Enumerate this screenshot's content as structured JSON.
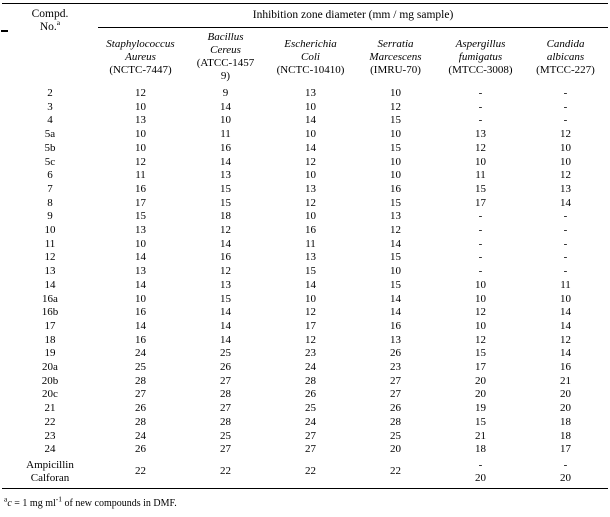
{
  "colors": {
    "text": "#000000",
    "background": "#ffffff",
    "rule": "#000000"
  },
  "page": {
    "footnote": {
      "sup": "a",
      "var": "c",
      "mid": " = 1 mg ml",
      "exp": "-1",
      "tail": " of new compounds in DMF."
    }
  },
  "table": {
    "compound_header": {
      "line1": "Compd.",
      "line2": "No.",
      "sup": "a"
    },
    "span_header": "Inhibition zone diameter (mm / mg sample)",
    "organisms": [
      {
        "name_lines": [
          "Staphylococcus",
          "Aureus"
        ],
        "code_lines": [
          "(NCTC-7447)"
        ]
      },
      {
        "name_lines": [
          "Bacillus",
          "Cereus"
        ],
        "code_lines": [
          "(ATCC-1457",
          "9)"
        ]
      },
      {
        "name_lines": [
          "Escherichia",
          "Coli"
        ],
        "code_lines": [
          "(NCTC-10410)"
        ]
      },
      {
        "name_lines": [
          "Serratia",
          "Marcescens"
        ],
        "code_lines": [
          "(IMRU-70)"
        ]
      },
      {
        "name_lines": [
          "Aspergillus",
          "fumigatus"
        ],
        "code_lines": [
          "(MTCC-3008)"
        ]
      },
      {
        "name_lines": [
          "Candida",
          "albicans"
        ],
        "code_lines": [
          "(MTCC-227)"
        ]
      }
    ],
    "rows": [
      {
        "compound": "2",
        "values": [
          "12",
          "9",
          "13",
          "10",
          "-",
          "-"
        ]
      },
      {
        "compound": "3",
        "values": [
          "10",
          "14",
          "10",
          "12",
          "-",
          "-"
        ]
      },
      {
        "compound": "4",
        "values": [
          "13",
          "10",
          "14",
          "15",
          "-",
          "-"
        ]
      },
      {
        "compound": "5a",
        "values": [
          "10",
          "11",
          "10",
          "10",
          "13",
          "12"
        ]
      },
      {
        "compound": "5b",
        "values": [
          "10",
          "16",
          "14",
          "15",
          "12",
          "10"
        ]
      },
      {
        "compound": "5c",
        "values": [
          "12",
          "14",
          "12",
          "10",
          "10",
          "10"
        ]
      },
      {
        "compound": "6",
        "values": [
          "11",
          "13",
          "10",
          "10",
          "11",
          "12"
        ]
      },
      {
        "compound": "7",
        "values": [
          "16",
          "15",
          "13",
          "16",
          "15",
          "13"
        ]
      },
      {
        "compound": "8",
        "values": [
          "17",
          "15",
          "12",
          "15",
          "17",
          "14"
        ]
      },
      {
        "compound": "9",
        "values": [
          "15",
          "18",
          "10",
          "13",
          "-",
          "-"
        ]
      },
      {
        "compound": "10",
        "values": [
          "13",
          "12",
          "16",
          "12",
          "-",
          "-"
        ]
      },
      {
        "compound": "11",
        "values": [
          "10",
          "14",
          "11",
          "14",
          "-",
          "-"
        ]
      },
      {
        "compound": "12",
        "values": [
          "14",
          "16",
          "13",
          "15",
          "-",
          "-"
        ]
      },
      {
        "compound": "13",
        "values": [
          "13",
          "12",
          "15",
          "10",
          "-",
          "-"
        ]
      },
      {
        "compound": "14",
        "values": [
          "14",
          "13",
          "14",
          "15",
          "10",
          "11"
        ]
      },
      {
        "compound": "16a",
        "values": [
          "10",
          "15",
          "10",
          "14",
          "10",
          "10"
        ]
      },
      {
        "compound": "16b",
        "values": [
          "16",
          "14",
          "12",
          "14",
          "12",
          "14"
        ]
      },
      {
        "compound": "17",
        "values": [
          "14",
          "14",
          "17",
          "16",
          "10",
          "14"
        ]
      },
      {
        "compound": "18",
        "values": [
          "16",
          "14",
          "12",
          "13",
          "12",
          "12"
        ]
      },
      {
        "compound": "19",
        "values": [
          "24",
          "25",
          "23",
          "26",
          "15",
          "14"
        ]
      },
      {
        "compound": "20a",
        "values": [
          "25",
          "26",
          "24",
          "23",
          "17",
          "16"
        ]
      },
      {
        "compound": "20b",
        "values": [
          "28",
          "27",
          "28",
          "27",
          "20",
          "21"
        ]
      },
      {
        "compound": "20c",
        "values": [
          "27",
          "28",
          "26",
          "27",
          "20",
          "20"
        ]
      },
      {
        "compound": "21",
        "values": [
          "26",
          "27",
          "25",
          "26",
          "19",
          "20"
        ]
      },
      {
        "compound": "22",
        "values": [
          "28",
          "28",
          "24",
          "28",
          "15",
          "18"
        ]
      },
      {
        "compound": "23",
        "values": [
          "24",
          "25",
          "27",
          "25",
          "21",
          "18"
        ]
      },
      {
        "compound": "24",
        "values": [
          "26",
          "27",
          "27",
          "20",
          "18",
          "17"
        ]
      }
    ],
    "control": {
      "compound_lines": [
        "Ampicillin",
        "Calforan"
      ],
      "bacteria_values": [
        "22",
        "22",
        "22",
        "22"
      ],
      "fungal_values": [
        [
          "-",
          "20"
        ],
        [
          "-",
          "20"
        ]
      ]
    }
  }
}
